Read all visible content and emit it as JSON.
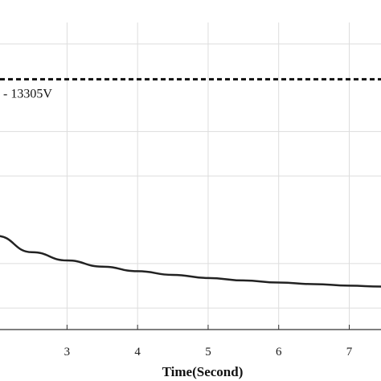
{
  "chart_data": {
    "type": "line",
    "xlabel": "Time(Second)",
    "ylabel": "",
    "x_ticks": [
      3,
      4,
      5,
      6,
      7
    ],
    "xlim": [
      2.05,
      7.45
    ],
    "grid": true,
    "series": [
      {
        "style": "dashed",
        "color": "#111111",
        "x": [
          2.05,
          7.45
        ],
        "y": [
          0.815,
          0.815
        ]
      },
      {
        "style": "solid",
        "color": "#222222",
        "x": [
          2.0,
          2.5,
          3.0,
          3.5,
          4.0,
          4.5,
          5.0,
          5.5,
          6.0,
          6.5,
          7.0,
          7.45
        ],
        "y": [
          0.305,
          0.252,
          0.225,
          0.205,
          0.19,
          0.178,
          0.168,
          0.16,
          0.153,
          0.148,
          0.143,
          0.14
        ]
      }
    ],
    "annotations": [
      {
        "text": "- 13305V",
        "x": 2.05,
        "y": 0.755
      }
    ]
  },
  "colors": {
    "grid": "#dddddd",
    "axis": "#333333",
    "line": "#222222"
  }
}
